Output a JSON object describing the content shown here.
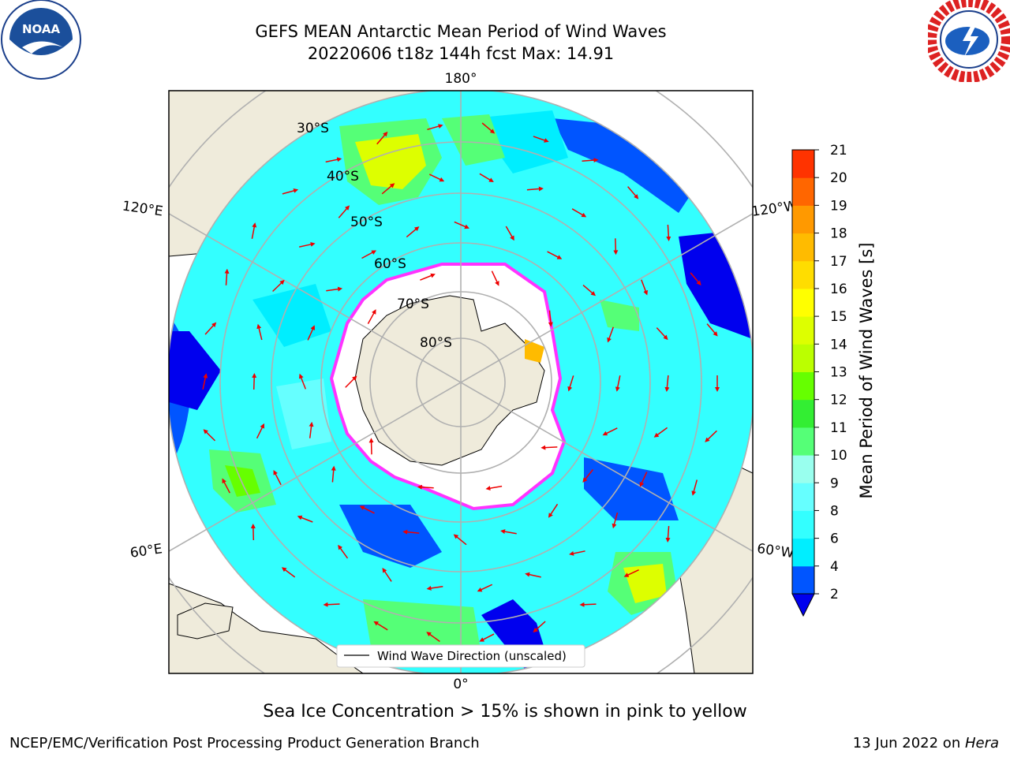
{
  "title": {
    "line1": "GEFS MEAN Antarctic Mean Period of Wind Waves",
    "line2": "20220606 t18z 144h fcst   Max: 14.91"
  },
  "logos": {
    "left": "noaa-logo",
    "right": "nws-logo"
  },
  "map": {
    "projection": "south-polar-stereographic",
    "longitude_labels": [
      "180°",
      "120°E",
      "120°W",
      "60°E",
      "60°W",
      "0°"
    ],
    "latitude_labels": [
      "30°S",
      "40°S",
      "50°S",
      "60°S",
      "70°S",
      "80°S"
    ],
    "legend_entry": "Wind Wave Direction (unscaled)",
    "colors": {
      "land": "#efebdb",
      "ice": "#ffffff",
      "ice_edge": "#ff33ff",
      "arrow": "#ee0000",
      "grid": "#b0b0b0"
    }
  },
  "colorbar": {
    "label": "Mean Period of Wind Waves [s]",
    "ticks": [
      "2",
      "4",
      "6",
      "8",
      "9",
      "10",
      "11",
      "12",
      "13",
      "14",
      "15",
      "16",
      "17",
      "18",
      "19",
      "20",
      "21"
    ],
    "colors": [
      "#0055ff",
      "#00eeff",
      "#33ffff",
      "#66ffff",
      "#99ffee",
      "#55ff77",
      "#33ee33",
      "#66ff00",
      "#bbff00",
      "#ddff00",
      "#ffff00",
      "#ffdd00",
      "#ffbb00",
      "#ff9900",
      "#ff6600",
      "#ff3300",
      "#ff0000"
    ],
    "under_color": "#0000ee"
  },
  "footer": {
    "ice_note": "Sea Ice Concentration > 15% is shown in pink to yellow",
    "credit": "NCEP/EMC/Verification Post Processing Product Generation Branch",
    "date_prefix": "13 Jun 2022 on ",
    "machine": "Hera"
  }
}
